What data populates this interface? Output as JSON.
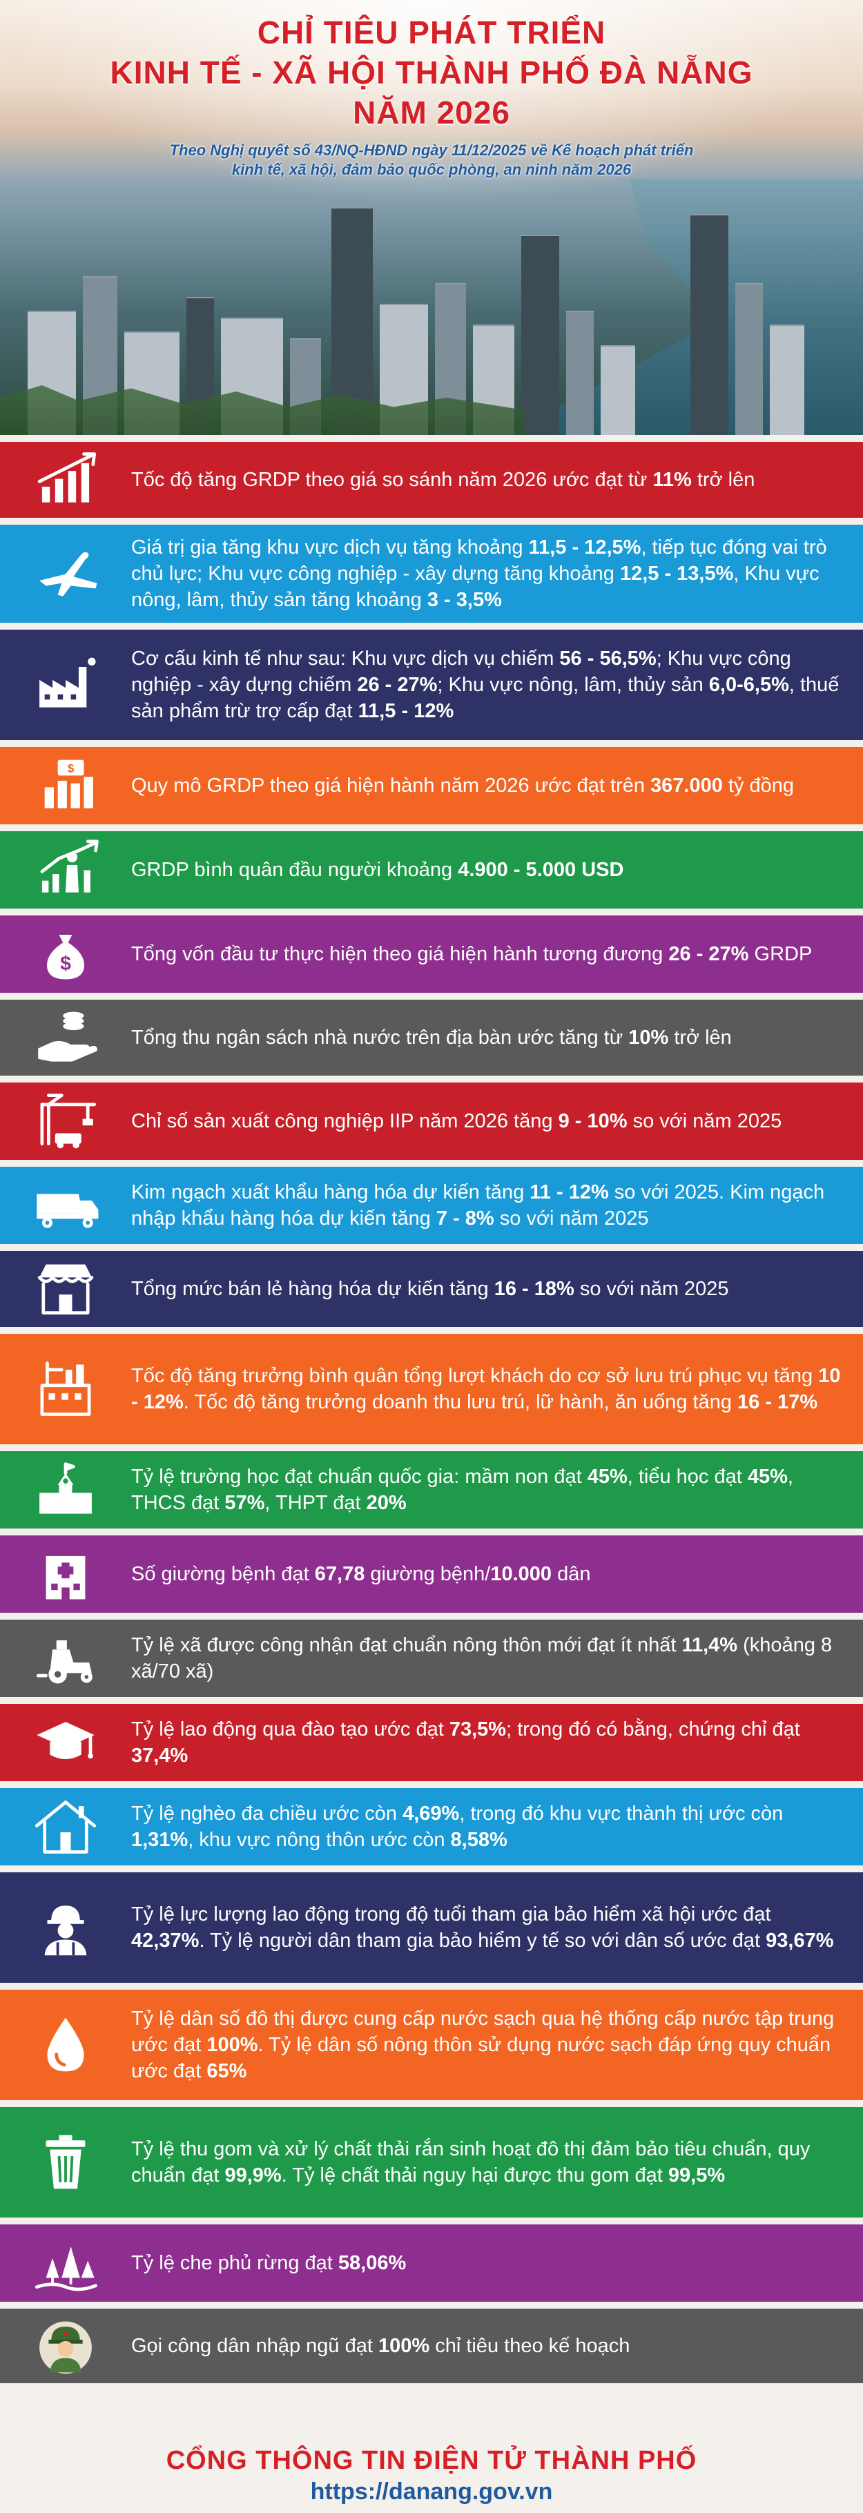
{
  "header": {
    "title_lines": [
      "CHỈ TIÊU PHÁT TRIỂN",
      "KINH TẾ - XÃ HỘI THÀNH PHỐ ĐÀ NẴNG",
      "NĂM 2026"
    ],
    "subtitle_lines": [
      "Theo Nghị quyết số 43/NQ-HĐND ngày 11/12/2025 về Kế hoạch phát triển",
      "kinh tế, xã hội, đảm bảo quốc phòng, an ninh năm 2026"
    ]
  },
  "colors": {
    "title_red": "#d62027",
    "subtitle_blue": "#1f5a9d",
    "background": "#f4f1ec"
  },
  "rows": [
    {
      "icon": "growth-chart-icon",
      "color": "#c8202a",
      "height": 110,
      "parts": [
        [
          "t",
          "Tốc độ tăng GRDP theo giá so sánh năm 2026 ước đạt từ "
        ],
        [
          "b",
          "11%"
        ],
        [
          "t",
          " trở lên"
        ]
      ]
    },
    {
      "icon": "airplane-icon",
      "color": "#1a9ad7",
      "height": 142,
      "parts": [
        [
          "t",
          "Giá trị gia tăng khu vực dịch vụ tăng khoảng "
        ],
        [
          "b",
          "11,5 - 12,5%"
        ],
        [
          "t",
          ", tiếp tục đóng vai trò chủ lực; Khu vực công nghiệp - xây dựng tăng khoảng "
        ],
        [
          "b",
          "12,5 - 13,5%"
        ],
        [
          "t",
          ",  Khu vực nông, lâm, thủy sản tăng khoảng "
        ],
        [
          "b",
          "3 - 3,5%"
        ]
      ]
    },
    {
      "icon": "factory-icon",
      "color": "#2e3266",
      "height": 160,
      "parts": [
        [
          "t",
          "Cơ cấu kinh tế như sau: Khu vực dịch vụ chiếm "
        ],
        [
          "b",
          "56 - 56,5%"
        ],
        [
          "t",
          "; Khu vực công nghiệp - xây dựng chiếm "
        ],
        [
          "b",
          "26 - 27%"
        ],
        [
          "t",
          "; Khu vực nông, lâm, thủy sản "
        ],
        [
          "b",
          "6,0-6,5%"
        ],
        [
          "t",
          ", thuế sản phẩm trừ trợ cấp đạt "
        ],
        [
          "b",
          "11,5 - 12%"
        ]
      ]
    },
    {
      "icon": "money-bars-icon",
      "color": "#f26522",
      "height": 112,
      "parts": [
        [
          "t",
          "Quy mô GRDP theo giá hiện hành năm 2026 ước đạt trên "
        ],
        [
          "b",
          "367.000"
        ],
        [
          "t",
          " tỷ đồng"
        ]
      ]
    },
    {
      "icon": "person-growth-icon",
      "color": "#1f9a4a",
      "height": 112,
      "parts": [
        [
          "t",
          "GRDP bình quân đầu người khoảng "
        ],
        [
          "b",
          "4.900 - 5.000 USD"
        ]
      ]
    },
    {
      "icon": "money-bag-icon",
      "color": "#8e2f8f",
      "height": 112,
      "parts": [
        [
          "t",
          "Tổng vốn đầu tư thực hiện theo giá hiện hành tương đương "
        ],
        [
          "b",
          "26 - 27%"
        ],
        [
          "t",
          " GRDP"
        ]
      ]
    },
    {
      "icon": "hand-coins-icon",
      "color": "#5a5a5a",
      "height": 110,
      "parts": [
        [
          "t",
          "Tổng thu ngân sách nhà nước trên địa bàn ước tăng từ "
        ],
        [
          "b",
          "10%"
        ],
        [
          "t",
          " trở lên"
        ]
      ]
    },
    {
      "icon": "crane-icon",
      "color": "#c8202a",
      "height": 112,
      "parts": [
        [
          "t",
          "Chỉ số sản xuất công nghiệp IIP năm 2026 tăng "
        ],
        [
          "b",
          "9 - 10%"
        ],
        [
          "t",
          " so với năm 2025"
        ]
      ]
    },
    {
      "icon": "truck-icon",
      "color": "#1a9ad7",
      "height": 112,
      "parts": [
        [
          "t",
          "Kim ngạch xuất khẩu hàng hóa dự kiến tăng "
        ],
        [
          "b",
          "11 - 12%"
        ],
        [
          "t",
          " so với 2025. Kim ngạch nhập khẩu hàng hóa dự kiến tăng "
        ],
        [
          "b",
          "7 - 8%"
        ],
        [
          "t",
          " so với năm 2025"
        ]
      ]
    },
    {
      "icon": "storefront-icon",
      "color": "#2e3266",
      "height": 110,
      "parts": [
        [
          "t",
          "Tổng mức bán lẻ hàng hóa dự kiến tăng "
        ],
        [
          "b",
          "16 - 18%"
        ],
        [
          "t",
          " so với năm 2025"
        ]
      ]
    },
    {
      "icon": "hotel-icon",
      "color": "#f26522",
      "height": 160,
      "parts": [
        [
          "t",
          "Tốc độ tăng trưởng bình quân tổng lượt khách do cơ sở lưu trú phục vụ tăng "
        ],
        [
          "b",
          "10 - 12%"
        ],
        [
          "t",
          ". Tốc độ tăng trưởng doanh thu lưu trú, lữ hành, ăn uống tăng "
        ],
        [
          "b",
          "16 - 17%"
        ]
      ]
    },
    {
      "icon": "school-icon",
      "color": "#1f9a4a",
      "height": 112,
      "parts": [
        [
          "t",
          "Tỷ lệ trường học đạt chuẩn quốc gia: mầm non đạt "
        ],
        [
          "b",
          "45%"
        ],
        [
          "t",
          ", tiểu học đạt "
        ],
        [
          "b",
          "45%"
        ],
        [
          "t",
          ", THCS đạt "
        ],
        [
          "b",
          "57%"
        ],
        [
          "t",
          ", THPT đạt "
        ],
        [
          "b",
          "20%"
        ]
      ]
    },
    {
      "icon": "hospital-icon",
      "color": "#8e2f8f",
      "height": 112,
      "parts": [
        [
          "t",
          "Số giường bệnh đạt "
        ],
        [
          "b",
          "67,78"
        ],
        [
          "t",
          " giường bệnh/"
        ],
        [
          "b",
          "10.000"
        ],
        [
          "t",
          " dân"
        ]
      ]
    },
    {
      "icon": "tractor-icon",
      "color": "#5a5a5a",
      "height": 112,
      "parts": [
        [
          "t",
          "Tỷ lệ xã được công nhận đạt chuẩn nông thôn mới đạt ít nhất "
        ],
        [
          "b",
          "11,4%"
        ],
        [
          "t",
          " (khoảng 8 xã/70 xã)"
        ]
      ]
    },
    {
      "icon": "graduation-cap-icon",
      "color": "#c8202a",
      "height": 112,
      "parts": [
        [
          "t",
          "Tỷ lệ lao động qua đào tạo ước đạt "
        ],
        [
          "b",
          "73,5%"
        ],
        [
          "t",
          "; trong đó có bằng, chứng chỉ đạt "
        ],
        [
          "b",
          "37,4%"
        ]
      ]
    },
    {
      "icon": "house-icon",
      "color": "#1a9ad7",
      "height": 112,
      "parts": [
        [
          "t",
          "Tỷ lệ nghèo đa chiều ước còn "
        ],
        [
          "b",
          "4,69%"
        ],
        [
          "t",
          ", trong đó khu vực thành thị ước còn "
        ],
        [
          "b",
          "1,31%"
        ],
        [
          "t",
          ", khu vực nông thôn ước còn "
        ],
        [
          "b",
          "8,58%"
        ]
      ]
    },
    {
      "icon": "worker-icon",
      "color": "#2e3266",
      "height": 160,
      "parts": [
        [
          "t",
          "Tỷ lệ lực lượng lao động trong độ tuổi tham gia bảo hiểm xã hội ước đạt "
        ],
        [
          "b",
          "42,37%"
        ],
        [
          "t",
          ". Tỷ lệ người dân tham gia bảo hiểm y tế so với dân số ước đạt "
        ],
        [
          "b",
          "93,67%"
        ]
      ]
    },
    {
      "icon": "water-drop-icon",
      "color": "#f26522",
      "height": 160,
      "parts": [
        [
          "t",
          "Tỷ lệ dân số đô thị được cung cấp nước sạch qua hệ thống cấp nước tập trung ước đạt "
        ],
        [
          "b",
          "100%"
        ],
        [
          "t",
          ". Tỷ lệ dân số nông thôn sử dụng nước sạch đáp ứng quy chuẩn ước đạt "
        ],
        [
          "b",
          "65%"
        ]
      ]
    },
    {
      "icon": "trash-bin-icon",
      "color": "#1f9a4a",
      "height": 160,
      "parts": [
        [
          "t",
          "Tỷ lệ thu gom và xử lý chất thải rắn sinh hoạt đô thị đảm bảo tiêu chuẩn, quy chuẩn đạt "
        ],
        [
          "b",
          "99,9%"
        ],
        [
          "t",
          ". Tỷ lệ chất thải nguy hại được thu gom đạt "
        ],
        [
          "b",
          "99,5%"
        ]
      ]
    },
    {
      "icon": "forest-icon",
      "color": "#8e2f8f",
      "height": 112,
      "parts": [
        [
          "t",
          "Tỷ lệ che phủ rừng đạt "
        ],
        [
          "b",
          "58,06%"
        ]
      ]
    },
    {
      "icon": "soldier-icon",
      "color": "#5a5a5a",
      "height": 108,
      "parts": [
        [
          "t",
          "Gọi công dân nhập ngũ đạt "
        ],
        [
          "b",
          "100%"
        ],
        [
          "t",
          " chỉ tiêu theo kế hoạch"
        ]
      ]
    }
  ],
  "footer": {
    "title": "CỔNG THÔNG TIN ĐIỆN TỬ THÀNH PHỐ",
    "url": "https://danang.gov.vn"
  }
}
